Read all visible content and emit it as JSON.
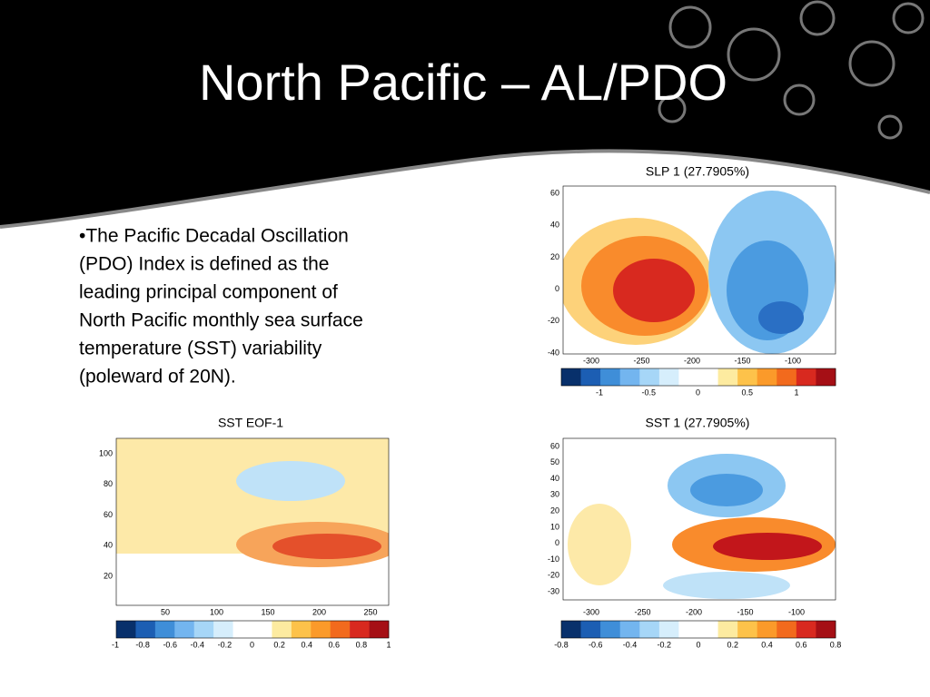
{
  "title": "North Pacific – AL/PDO",
  "bullet": {
    "lines": [
      "•The Pacific Decadal Oscillation",
      "(PDO) Index is defined as the",
      "leading principal component of",
      "North Pacific monthly sea surface",
      "temperature (SST) variability",
      "(poleward of 20N)."
    ]
  },
  "panels": [
    {
      "title": "SLP 1 (27.7905%)",
      "yticks": [
        "60",
        "40",
        "20",
        "0",
        "-20",
        "-40"
      ],
      "xticks": [
        "-300",
        "-250",
        "-200",
        "-150",
        "-100"
      ],
      "colorbar": [
        "-1",
        "-0.5",
        "0",
        "0.5",
        "1"
      ]
    },
    {
      "title": "SST EOF-1",
      "yticks": [
        "100",
        "80",
        "60",
        "40",
        "20"
      ],
      "xticks": [
        "50",
        "100",
        "150",
        "200",
        "250"
      ],
      "colorbar": [
        "-1",
        "-0.8",
        "-0.6",
        "-0.4",
        "-0.2",
        "0",
        "0.2",
        "0.4",
        "0.6",
        "0.8",
        "1"
      ]
    },
    {
      "title": "SST 1 (27.7905%)",
      "yticks": [
        "60",
        "50",
        "40",
        "30",
        "20",
        "10",
        "0",
        "-10",
        "-20",
        "-30"
      ],
      "xticks": [
        "-300",
        "-250",
        "-200",
        "-150",
        "-100"
      ],
      "colorbar": [
        "-0.8",
        "-0.6",
        "-0.4",
        "-0.2",
        "0",
        "0.2",
        "0.4",
        "0.6",
        "0.8"
      ]
    }
  ]
}
